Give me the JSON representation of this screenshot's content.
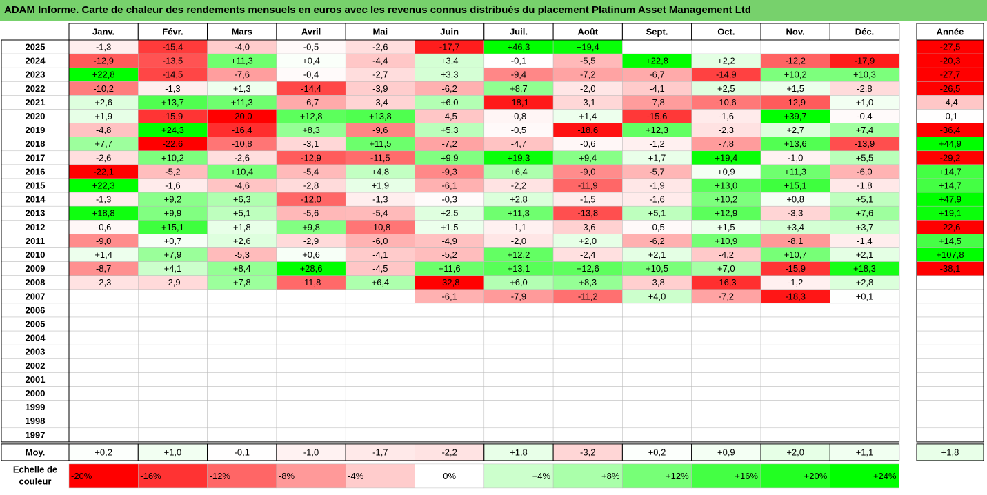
{
  "title": "ADAM Informe. Carte de chaleur des rendements mensuels en euros avec les revenus connus distribués du placement Platinum Asset Management Ltd",
  "chart_data": {
    "type": "heatmap",
    "months": [
      "Janv.",
      "Févr.",
      "Mars",
      "Avril",
      "Mai",
      "Juin",
      "Juil.",
      "Août",
      "Sept.",
      "Oct.",
      "Nov.",
      "Déc."
    ],
    "year_header": "Année",
    "years": [
      2025,
      2024,
      2023,
      2022,
      2021,
      2020,
      2019,
      2018,
      2017,
      2016,
      2015,
      2014,
      2013,
      2012,
      2011,
      2010,
      2009,
      2008,
      2007,
      2006,
      2005,
      2004,
      2003,
      2002,
      2001,
      2000,
      1999,
      1998,
      1997
    ],
    "values": [
      [
        -1.3,
        -15.4,
        -4.0,
        -0.5,
        -2.6,
        -17.7,
        46.3,
        19.4,
        null,
        null,
        null,
        null
      ],
      [
        -12.9,
        -13.5,
        11.3,
        0.4,
        -4.4,
        3.4,
        -0.1,
        -5.5,
        22.8,
        2.2,
        -12.2,
        -17.9
      ],
      [
        22.8,
        -14.5,
        -7.6,
        -0.4,
        -2.7,
        3.3,
        -9.4,
        -7.2,
        -6.7,
        -14.9,
        10.2,
        10.3
      ],
      [
        -10.2,
        -1.3,
        1.3,
        -14.4,
        -3.9,
        -6.2,
        8.7,
        -2.0,
        -4.1,
        2.5,
        1.5,
        -2.8
      ],
      [
        2.6,
        13.7,
        11.3,
        -6.7,
        -3.4,
        6.0,
        -18.1,
        -3.1,
        -7.8,
        -10.6,
        -12.9,
        1.0
      ],
      [
        1.9,
        -15.9,
        -20.0,
        12.8,
        13.8,
        -4.5,
        -0.8,
        1.4,
        -15.6,
        -1.6,
        39.7,
        -0.4
      ],
      [
        -4.8,
        24.3,
        -16.4,
        8.3,
        -9.6,
        5.3,
        -0.5,
        -18.6,
        12.3,
        -2.3,
        2.7,
        7.4
      ],
      [
        7.7,
        -22.6,
        -10.8,
        -3.1,
        11.5,
        -7.2,
        -4.7,
        -0.6,
        -1.2,
        -7.8,
        13.6,
        -13.9
      ],
      [
        -2.6,
        10.2,
        -2.6,
        -12.9,
        -11.5,
        9.9,
        19.3,
        9.4,
        1.7,
        19.4,
        -1.0,
        5.5
      ],
      [
        -22.1,
        -5.2,
        10.4,
        -5.4,
        4.8,
        -9.3,
        6.4,
        -9.0,
        -5.7,
        0.9,
        11.3,
        -6.0
      ],
      [
        22.3,
        -1.6,
        -4.6,
        -2.8,
        1.9,
        -6.1,
        -2.2,
        -11.9,
        -1.9,
        13.0,
        15.1,
        -1.8
      ],
      [
        -1.3,
        9.2,
        6.3,
        -12.0,
        -1.3,
        -0.3,
        2.8,
        -1.5,
        -1.6,
        10.2,
        0.8,
        5.1
      ],
      [
        18.8,
        9.9,
        5.1,
        -5.6,
        -5.4,
        2.5,
        11.3,
        -13.8,
        5.1,
        12.9,
        -3.3,
        7.6
      ],
      [
        -0.6,
        15.1,
        1.8,
        9.8,
        -10.8,
        1.5,
        -1.1,
        -3.6,
        -0.5,
        1.5,
        3.4,
        3.7
      ],
      [
        -9.0,
        0.7,
        2.6,
        -2.9,
        -6.0,
        -4.9,
        -2.0,
        2.0,
        -6.2,
        10.9,
        -8.1,
        -1.4
      ],
      [
        1.4,
        7.9,
        -5.3,
        0.6,
        -4.1,
        -5.2,
        12.2,
        -2.4,
        2.1,
        -4.2,
        10.7,
        2.1
      ],
      [
        -8.7,
        4.1,
        8.4,
        28.6,
        -4.5,
        11.6,
        13.1,
        12.6,
        10.5,
        7.0,
        -15.9,
        18.3
      ],
      [
        -2.3,
        -2.9,
        7.8,
        -11.8,
        6.4,
        -32.8,
        6.0,
        8.3,
        -3.8,
        -16.3,
        -1.2,
        2.8
      ],
      [
        null,
        null,
        null,
        null,
        null,
        -6.1,
        -7.9,
        -11.2,
        4.0,
        -7.2,
        -18.3,
        0.1
      ],
      [
        null,
        null,
        null,
        null,
        null,
        null,
        null,
        null,
        null,
        null,
        null,
        null
      ],
      [
        null,
        null,
        null,
        null,
        null,
        null,
        null,
        null,
        null,
        null,
        null,
        null
      ],
      [
        null,
        null,
        null,
        null,
        null,
        null,
        null,
        null,
        null,
        null,
        null,
        null
      ],
      [
        null,
        null,
        null,
        null,
        null,
        null,
        null,
        null,
        null,
        null,
        null,
        null
      ],
      [
        null,
        null,
        null,
        null,
        null,
        null,
        null,
        null,
        null,
        null,
        null,
        null
      ],
      [
        null,
        null,
        null,
        null,
        null,
        null,
        null,
        null,
        null,
        null,
        null,
        null
      ],
      [
        null,
        null,
        null,
        null,
        null,
        null,
        null,
        null,
        null,
        null,
        null,
        null
      ],
      [
        null,
        null,
        null,
        null,
        null,
        null,
        null,
        null,
        null,
        null,
        null,
        null
      ],
      [
        null,
        null,
        null,
        null,
        null,
        null,
        null,
        null,
        null,
        null,
        null,
        null
      ],
      [
        null,
        null,
        null,
        null,
        null,
        null,
        null,
        null,
        null,
        null,
        null,
        null
      ]
    ],
    "annual": [
      -27.5,
      -20.3,
      -27.7,
      -26.5,
      -4.4,
      -0.1,
      -36.4,
      44.9,
      -29.2,
      14.7,
      14.7,
      47.9,
      19.1,
      -22.6,
      14.5,
      107.8,
      -38.1,
      null,
      null,
      null,
      null,
      null,
      null,
      null,
      null,
      null,
      null,
      null,
      null
    ],
    "average_label": "Moy.",
    "averages": [
      0.2,
      1.0,
      -0.1,
      -1.0,
      -1.7,
      -2.2,
      1.8,
      -3.2,
      0.2,
      0.9,
      2.0,
      1.1
    ],
    "average_annual": 1.8,
    "legend_label_line1": "Echelle de",
    "legend_label_line2": "couleur",
    "legend": [
      {
        "label": "-20%",
        "value": -20,
        "color": "#ff0000"
      },
      {
        "label": "-16%",
        "value": -16,
        "color": "#ff3333"
      },
      {
        "label": "-12%",
        "value": -12,
        "color": "#ff6666"
      },
      {
        "label": "-8%",
        "value": -8,
        "color": "#ff9999"
      },
      {
        "label": "-4%",
        "value": -4,
        "color": "#ffcccc"
      },
      {
        "label": "0%",
        "value": 0,
        "color": "#ffffff"
      },
      {
        "label": "+4%",
        "value": 4,
        "color": "#ccffcc"
      },
      {
        "label": "+8%",
        "value": 8,
        "color": "#aaffaa"
      },
      {
        "label": "+12%",
        "value": 12,
        "color": "#77ff77"
      },
      {
        "label": "+16%",
        "value": 16,
        "color": "#44ff44"
      },
      {
        "label": "+20%",
        "value": 20,
        "color": "#22ff22"
      },
      {
        "label": "+24%",
        "value": 24,
        "color": "#00ff00"
      }
    ]
  }
}
